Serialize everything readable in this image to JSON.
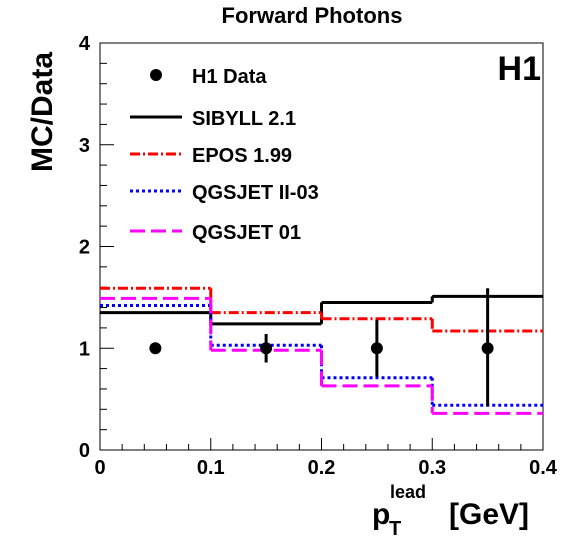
{
  "chart_data": {
    "type": "line",
    "title": "Forward Photons",
    "xlabel": {
      "main": "p",
      "sub": "T",
      "sup": "lead",
      "unit": "[GeV]"
    },
    "ylabel": "MC/Data",
    "xlim": [
      0,
      0.4
    ],
    "ylim": [
      0,
      4
    ],
    "xticks": [
      "0",
      "0.1",
      "0.2",
      "0.3",
      "0.4"
    ],
    "yticks": [
      "0",
      "1",
      "2",
      "3",
      "4"
    ],
    "logo": "H1",
    "legend_position": "top-left",
    "bin_edges": [
      0,
      0.1,
      0.2,
      0.3,
      0.4
    ],
    "data": {
      "name": "H1 Data",
      "x": [
        0.05,
        0.15,
        0.25,
        0.35
      ],
      "y": [
        1.0,
        1.0,
        1.0,
        1.0
      ],
      "err_low": [
        0.05,
        0.14,
        0.28,
        0.57
      ],
      "err_high": [
        0.05,
        0.14,
        0.28,
        0.59
      ]
    },
    "series": [
      {
        "name": "SIBYLL 2.1",
        "values": [
          1.35,
          1.24,
          1.45,
          1.51
        ],
        "color": "#000000",
        "style": "solid"
      },
      {
        "name": "EPOS 1.99",
        "values": [
          1.59,
          1.35,
          1.29,
          1.17
        ],
        "color": "#ff0000",
        "style": "dashdot"
      },
      {
        "name": "QGSJET II-03",
        "values": [
          1.42,
          1.03,
          0.71,
          0.44
        ],
        "color": "#0000ff",
        "style": "dotted"
      },
      {
        "name": "QGSJET 01",
        "values": [
          1.49,
          0.98,
          0.63,
          0.36
        ],
        "color": "#ff00ff",
        "style": "dashed"
      }
    ]
  }
}
